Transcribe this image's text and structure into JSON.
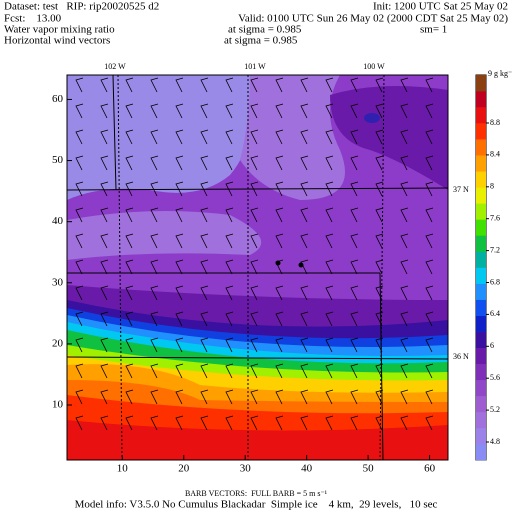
{
  "header": {
    "dataset": "Dataset: test   RIP: rip20020525 d2",
    "init": "Init: 1200 UTC Sat 25 May 02",
    "fcst": "Fcst:    13.00",
    "valid": "Valid: 0100 UTC Sun 26 May 02 (2000 CDT Sat 25 May 02)",
    "field": "Water vapor mixing ratio",
    "field_level": "at sigma = 0.985",
    "smooth": "sm= 1",
    "vector": "Horizontal wind vectors",
    "vector_level": "at sigma = 0.985"
  },
  "axes": {
    "xlim": [
      1,
      63
    ],
    "ylim": [
      1,
      64
    ],
    "xticks": [
      10,
      20,
      30,
      40,
      50,
      60
    ],
    "yticks": [
      10,
      20,
      30,
      40,
      50,
      60
    ]
  },
  "map_labels": {
    "lon": [
      "102 W",
      "101 W",
      "100 W"
    ],
    "lat": [
      "37 N",
      "36 N"
    ]
  },
  "colorbar": {
    "levels": [
      4.8,
      5.2,
      5.6,
      6,
      6.4,
      6.8,
      7.2,
      7.6,
      8,
      8.4,
      8.8
    ],
    "top": {
      "value": 9,
      "label": "9 g kg⁻¹"
    },
    "colors": [
      "#8a8cf5",
      "#9a82ea",
      "#a070dc",
      "#9e5ed2",
      "#9048c8",
      "#8030b8",
      "#6a1aa8",
      "#3a10a0",
      "#1020c8",
      "#1050f0",
      "#2090ff",
      "#00c8f0",
      "#00b0a0",
      "#10c040",
      "#40e000",
      "#a0f000",
      "#e8f000",
      "#ffd000",
      "#ffa000",
      "#ff7000",
      "#ff3000",
      "#e81010",
      "#c00020",
      "#8a4010"
    ]
  },
  "footer": {
    "barb": "BARB VECTORS:  FULL BARB = 5 m s⁻¹",
    "model": "Model info: V3.5.0 No Cumulus Blackadar  Simple ice    4 km,  29 levels,   10 sec"
  }
}
